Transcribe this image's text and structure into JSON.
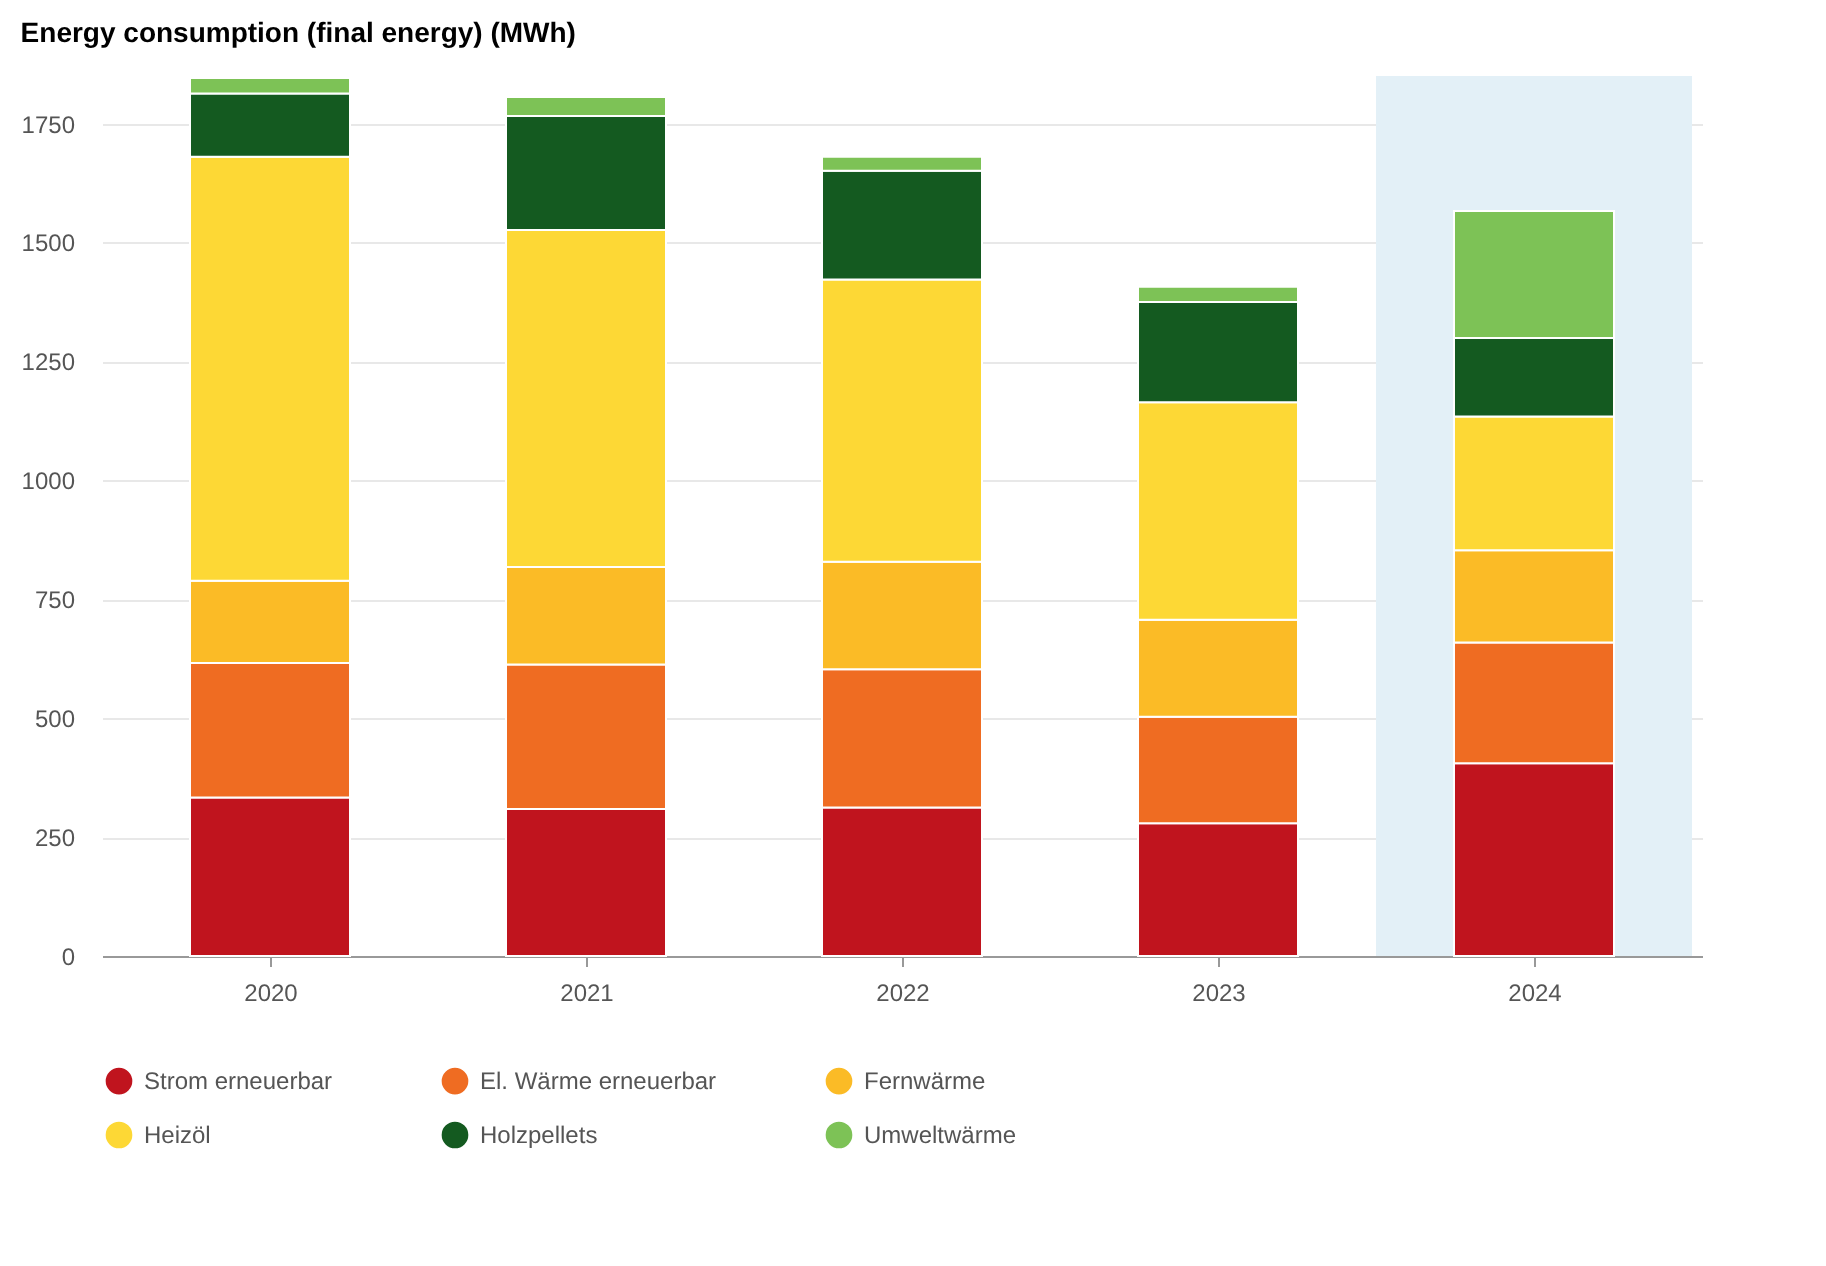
{
  "chart_data": {
    "type": "bar",
    "title": "Energy consumption (final energy) (MWh)",
    "stacked": true,
    "categories": [
      "2020",
      "2021",
      "2022",
      "2023",
      "2024"
    ],
    "series": [
      {
        "name": "Strom erneuerbar",
        "color": "#c0141e",
        "values": [
          333,
          309,
          312,
          279,
          405
        ]
      },
      {
        "name": "El. Wärme erneuerbar",
        "color": "#ef6c22",
        "values": [
          283,
          304,
          291,
          224,
          254
        ]
      },
      {
        "name": "Fernwärme",
        "color": "#fbbb26",
        "values": [
          173,
          205,
          226,
          204,
          194
        ]
      },
      {
        "name": "Heizöl",
        "color": "#fdd835",
        "values": [
          891,
          708,
          593,
          457,
          281
        ]
      },
      {
        "name": "Holzpellets",
        "color": "#145a20",
        "values": [
          133,
          240,
          229,
          211,
          165
        ]
      },
      {
        "name": "Umweltwärme",
        "color": "#7dc256",
        "values": [
          33,
          40,
          29,
          32,
          267
        ]
      }
    ],
    "ylim": [
      0,
      1850
    ],
    "yticks": [
      0,
      250,
      500,
      750,
      1000,
      1250,
      1500,
      1750
    ],
    "bands": [
      {
        "axis": "x",
        "from": "2024",
        "to": "2024",
        "color": "#e3f0f7"
      }
    ],
    "grid": "y",
    "legend": "bottom"
  }
}
